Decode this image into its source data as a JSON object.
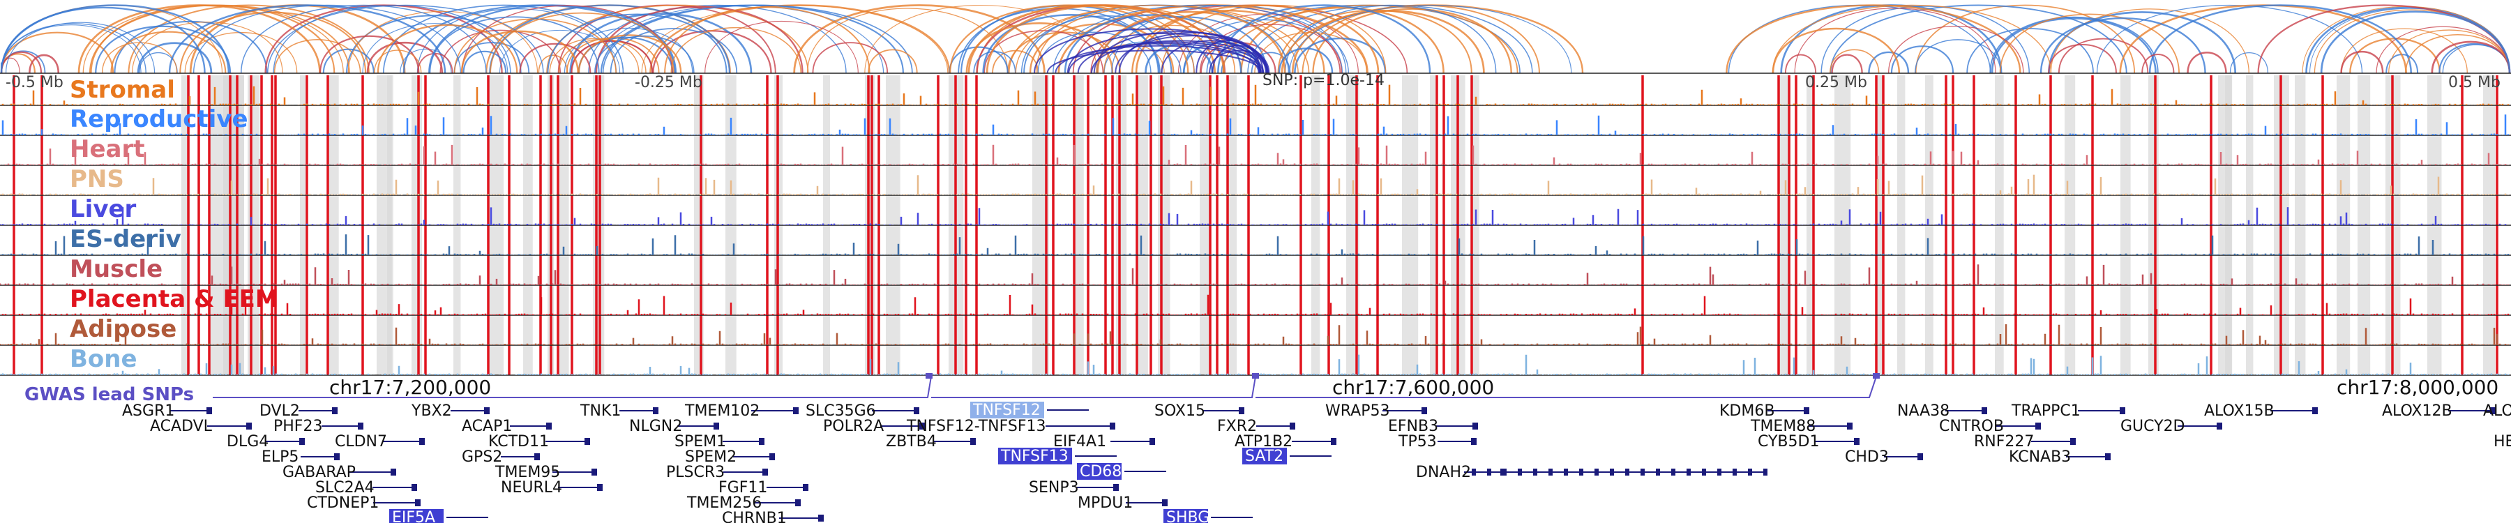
{
  "colors": {
    "arc_orange": "#e8812f",
    "arc_blue": "#3a7bd5",
    "arc_red": "#c8414b",
    "arc_navy": "#2a2ab0",
    "highlight_line": "#e0141e",
    "grey_band": "#d9d9d9",
    "snp_marker": "#5b4fc4",
    "gene": "#1a1a7a",
    "gene_label_highlight_bg": "#3f3fd2",
    "gene_label_light_bg": "#8fb0ea"
  },
  "coordinate_labels": {
    "left": "-0.5 Mb",
    "center_left": "-0.25 Mb",
    "center_right": "0.25 Mb",
    "right": "0.5 Mb",
    "snp_label": "SNP: p=1.0e-14"
  },
  "tracks": [
    {
      "name": "Stromal",
      "color": "#e8781e"
    },
    {
      "name": "Reproductive",
      "color": "#3a86ff"
    },
    {
      "name": "Heart",
      "color": "#d9707a"
    },
    {
      "name": "PNS",
      "color": "#e7b98a"
    },
    {
      "name": "Liver",
      "color": "#4a4adf"
    },
    {
      "name": "ES-deriv",
      "color": "#3d6fa8"
    },
    {
      "name": "Muscle",
      "color": "#c0505a"
    },
    {
      "name": "Placenta & EEM",
      "color": "#e0141e"
    },
    {
      "name": "Adipose",
      "color": "#b05a3a"
    },
    {
      "name": "Bone",
      "color": "#7fb3e0"
    }
  ],
  "gwas": {
    "title": "GWAS lead SNPs",
    "axis_labels": [
      "chr17:7,200,000",
      "chr17:7,600,000",
      "chr17:8,000,000"
    ]
  },
  "genes": {
    "plain": [
      "ASGR1",
      "DVL2",
      "YBX2",
      "TNK1",
      "TMEM102",
      "SLC35G6",
      "SOX15",
      "WRAP53",
      "KDM6B",
      "NAA38",
      "TRAPPC1",
      "ALOX15B",
      "ALOX12B",
      "ALO",
      "ACADVL",
      "PHF23",
      "ACAP1",
      "NLGN2",
      "POLR2A",
      "TNFSF12-TNFSF13",
      "FXR2",
      "EFNB3",
      "TMEM88",
      "CNTROB",
      "GUCY2D",
      "DLG4",
      "CLDN7",
      "KCTD11",
      "SPEM1",
      "ZBTB4",
      "EIF4A1",
      "ATP1B2",
      "TP53",
      "CYB5D1",
      "RNF227",
      "HE",
      "ELP5",
      "GPS2",
      "SPEM2",
      "CHD3",
      "KCNAB3",
      "GABARAP",
      "TMEM95",
      "PLSCR3",
      "DNAH2",
      "SLC2A4",
      "NEURL4",
      "FGF11",
      "SENP3",
      "CTDNEP1",
      "TMEM256",
      "MPDU1",
      "CHRNB1"
    ],
    "highlighted": [
      "TNFSF13",
      "SAT2",
      "CD68",
      "EIF5A",
      "SHBG"
    ],
    "light": [
      "TNFSF12"
    ]
  }
}
